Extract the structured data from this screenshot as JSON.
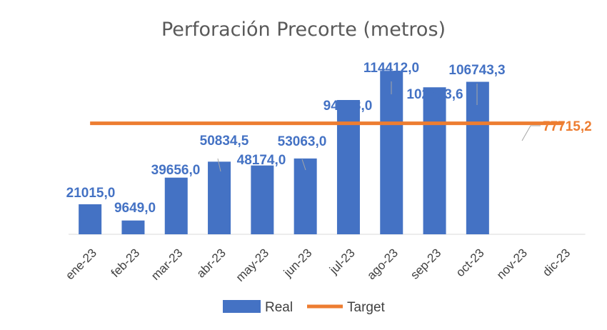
{
  "chart_data": {
    "type": "bar",
    "title": "Perforación Precorte (metros)",
    "categories": [
      "ene-23",
      "feb-23",
      "mar-23",
      "abr-23",
      "may-23",
      "jun-23",
      "jul-23",
      "ago-23",
      "sep-23",
      "oct-23",
      "nov-23",
      "dic-23"
    ],
    "series": [
      {
        "name": "Real",
        "type": "bar",
        "color": "#4472C4",
        "values": [
          21015.0,
          9649.0,
          39656.0,
          50834.5,
          48174.0,
          53063.0,
          94003.0,
          114412.0,
          102893.6,
          106743.3,
          null,
          null
        ],
        "labels": [
          "21015,0",
          "9649,0",
          "39656,0",
          "50834,5",
          "48174,0",
          "53063,0",
          "94003,0",
          "114412,0",
          "102893,6",
          "106743,3",
          null,
          null
        ]
      },
      {
        "name": "Target",
        "type": "line",
        "color": "#ED7D31",
        "values": [
          77715.2,
          77715.2,
          77715.2,
          77715.2,
          77715.2,
          77715.2,
          77715.2,
          77715.2,
          77715.2,
          77715.2,
          77715.2,
          77715.2
        ],
        "label": "77715,2"
      }
    ],
    "ylim": [
      0,
      120000
    ],
    "grid": false,
    "legend_position": "bottom"
  }
}
